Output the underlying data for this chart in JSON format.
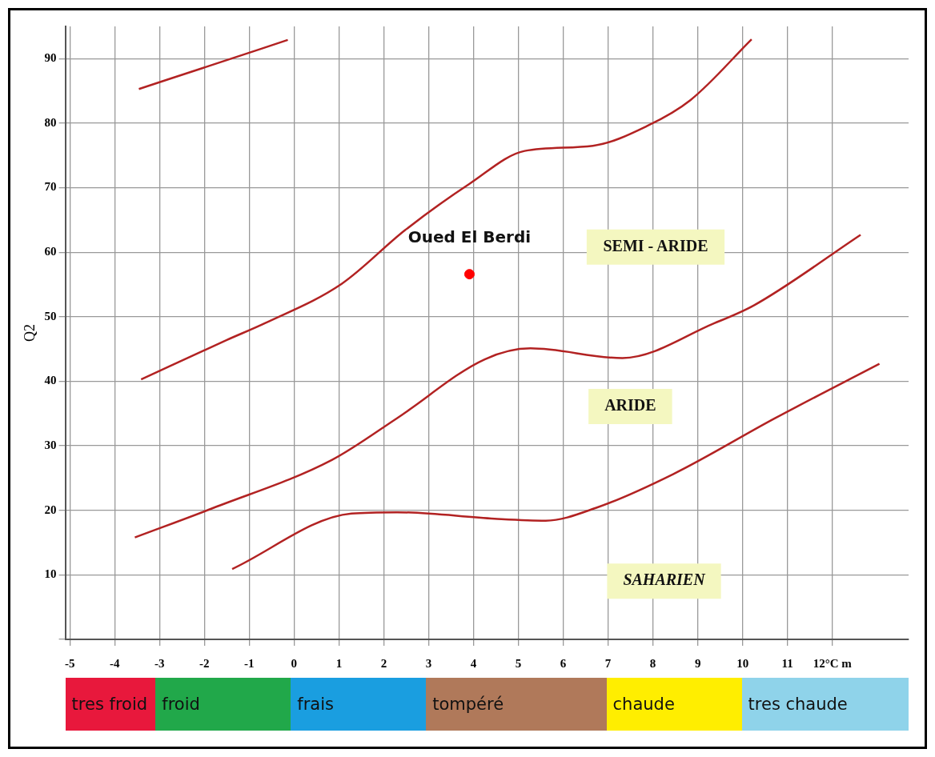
{
  "chart_data": {
    "type": "line",
    "ylabel": "Q2",
    "xlim": [
      -5.1,
      13.7
    ],
    "ylim": [
      0,
      95
    ],
    "xticks": [
      -5,
      -4,
      -3,
      -2,
      -1,
      0,
      1,
      2,
      3,
      4,
      5,
      6,
      7,
      8,
      9,
      10,
      11,
      {
        "value": 12,
        "label": "12°C m"
      }
    ],
    "yticks": [
      {
        "value": 0,
        "label": null
      },
      10,
      20,
      30,
      40,
      50,
      60,
      70,
      80,
      90
    ],
    "grid": true,
    "legend": false,
    "marker": "none",
    "line_style": "solid",
    "series": [
      {
        "color": "#b22222",
        "x": [
          -3.46,
          -1.84,
          -0.14
        ],
        "values": [
          85.3,
          89.0,
          92.9
        ]
      },
      {
        "color": "#b22222",
        "x": [
          -3.41,
          -1.5,
          -0.65,
          1.06,
          2.47,
          3.91,
          5.14,
          6.66,
          7.88,
          8.84,
          10.2
        ],
        "values": [
          40.3,
          46.4,
          49.0,
          55.1,
          63.4,
          70.6,
          75.7,
          76.5,
          79.6,
          83.6,
          93.0
        ]
      },
      {
        "color": "#b22222",
        "x": [
          -3.55,
          -1.79,
          0.84,
          2.3,
          4.25,
          5.27,
          7.32,
          9.37,
          10.26,
          12.63
        ],
        "values": [
          15.8,
          20.4,
          27.8,
          34.3,
          43.4,
          45.1,
          43.6,
          49.0,
          51.8,
          62.7
        ]
      },
      {
        "color": "#b22222",
        "x": [
          -1.38,
          1.28,
          2.3,
          4.47,
          5.61,
          6.74,
          8.45,
          10.73,
          13.05
        ],
        "values": [
          10.9,
          19.5,
          19.7,
          18.7,
          18.4,
          20.4,
          25.6,
          34.3,
          42.7
        ]
      },
      {
        "type": "scatter",
        "color": "#ff0000",
        "marker": "circle",
        "x": [
          3.91
        ],
        "values": [
          56.6
        ]
      }
    ],
    "annotations": [
      {
        "text": "Oued El Berdi",
        "x": 3.91,
        "y": 56.6
      },
      "SEMI - ARIDE",
      "ARIDE",
      "SAHARIEN",
      "tres froid",
      "froid",
      "frais",
      "tompéré",
      "chaude",
      "tres chaude"
    ]
  }
}
